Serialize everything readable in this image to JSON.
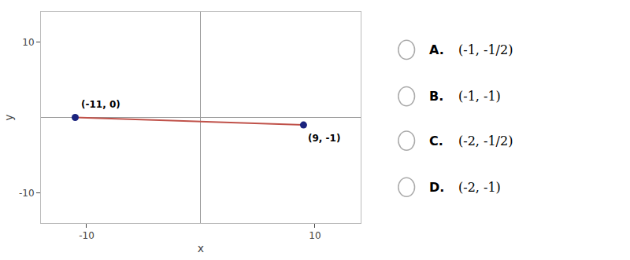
{
  "chart_data": {
    "type": "line",
    "x": [
      -11,
      9
    ],
    "values": [
      0,
      -1
    ],
    "color": "#c0524a",
    "colors": [
      "#1a237e",
      "#1a237e"
    ],
    "marker": "circle",
    "xlabel": "x",
    "ylabel": "y",
    "xlim": [
      -14,
      14
    ],
    "ylim": [
      -14,
      14
    ],
    "xticks": [
      -10,
      10
    ],
    "yticks": [
      -10,
      10
    ],
    "grid": false,
    "legend": false,
    "annotations": [
      {
        "text": "(-11, 0)",
        "x": -11,
        "y": 0
      },
      {
        "text": "(9, -1)",
        "x": 9,
        "y": -1
      },
      {
        "label": "A.",
        "text": "(-1, -1/2)"
      },
      {
        "label": "B.",
        "text": "(-1, -1)"
      },
      {
        "label": "C.",
        "text": "(-2, -1/2)"
      },
      {
        "label": "D.",
        "text": "(-2, -1)"
      }
    ]
  }
}
